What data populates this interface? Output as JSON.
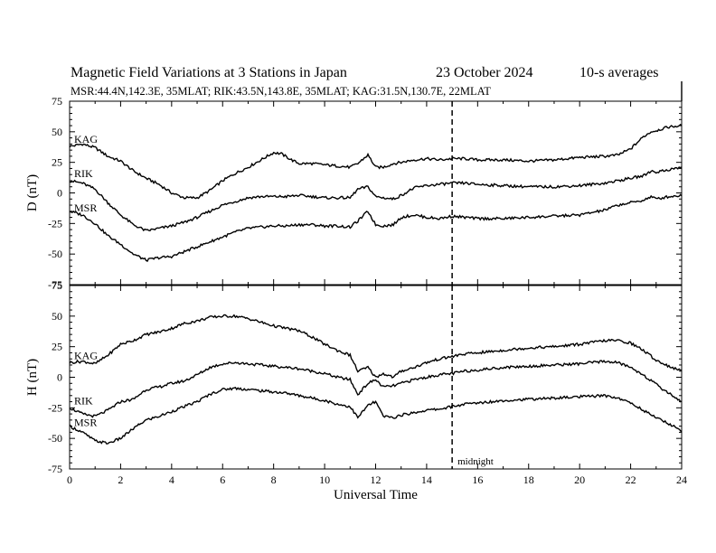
{
  "header": {
    "title": "Magnetic Field Variations at 3 Stations in Japan",
    "date": "23 October 2024",
    "averaging": "10-s averages",
    "stations": "MSR:44.4N,142.3E, 35MLAT;  RIK:43.5N,143.8E, 35MLAT;  KAG:31.5N,130.7E, 22MLAT"
  },
  "chart_data": [
    {
      "panel": "D",
      "type": "line",
      "ylabel": "D (nT)",
      "ylim": [
        -75,
        75
      ],
      "yticks": [
        75,
        50,
        25,
        0,
        -25,
        -50,
        -75
      ],
      "xlim": [
        0,
        24
      ],
      "series": [
        {
          "name": "KAG",
          "x": [
            0,
            0.5,
            1,
            1.5,
            2,
            2.5,
            3,
            3.5,
            4,
            4.5,
            5,
            5.5,
            6,
            6.5,
            7,
            7.5,
            8,
            8.3,
            8.7,
            9,
            9.5,
            10,
            10.5,
            11,
            11.3,
            11.7,
            12,
            12.3,
            12.7,
            13,
            13.5,
            14,
            14.5,
            15,
            15.5,
            16,
            17,
            18,
            19,
            20,
            21,
            21.5,
            22,
            22.5,
            22.8,
            23,
            23.5,
            24
          ],
          "values": [
            38,
            40,
            37,
            30,
            26,
            18,
            12,
            7,
            0,
            -4,
            -4,
            2,
            10,
            16,
            21,
            27,
            33,
            32,
            27,
            24,
            24,
            23,
            22,
            21,
            24,
            31,
            21,
            21,
            24,
            25,
            27,
            28,
            27,
            28,
            28,
            27,
            27,
            26,
            27,
            29,
            30,
            31,
            36,
            46,
            50,
            51,
            54,
            55
          ]
        },
        {
          "name": "RIK",
          "x": [
            0,
            0.5,
            1,
            1.5,
            2,
            2.5,
            3,
            3.5,
            4,
            4.5,
            5,
            5.5,
            6,
            6.5,
            7,
            7.5,
            8,
            8.5,
            9,
            9.5,
            10,
            10.5,
            11,
            11.3,
            11.7,
            12,
            12.3,
            12.7,
            13,
            13.5,
            14,
            14.5,
            15,
            15.5,
            16,
            17,
            18,
            19,
            20,
            21,
            21.5,
            22,
            22.5,
            22.8,
            23,
            23.5,
            24
          ],
          "values": [
            10,
            8,
            3,
            -8,
            -18,
            -26,
            -31,
            -29,
            -27,
            -24,
            -20,
            -15,
            -10,
            -7,
            -4,
            -3,
            -3,
            -3,
            -2,
            -3,
            -4,
            -4,
            -4,
            3,
            5,
            -3,
            -4,
            -5,
            -2,
            4,
            6,
            7,
            8,
            8,
            7,
            6,
            5,
            5,
            6,
            8,
            10,
            12,
            14,
            18,
            17,
            19,
            21
          ]
        },
        {
          "name": "MSR",
          "x": [
            0,
            0.5,
            1,
            1.5,
            2,
            2.5,
            3,
            3.5,
            4,
            4.5,
            5,
            5.5,
            6,
            6.5,
            7,
            7.5,
            8,
            8.5,
            9,
            9.5,
            10,
            10.5,
            11,
            11.3,
            11.7,
            12,
            12.3,
            12.7,
            13,
            13.5,
            14,
            14.5,
            15,
            15.5,
            16,
            17,
            18,
            19,
            20,
            21,
            21.5,
            22,
            22.5,
            22.8,
            23,
            23.5,
            24
          ],
          "values": [
            -15,
            -18,
            -25,
            -35,
            -42,
            -50,
            -55,
            -53,
            -52,
            -48,
            -44,
            -40,
            -36,
            -32,
            -29,
            -28,
            -27,
            -27,
            -26,
            -26,
            -27,
            -27,
            -28,
            -23,
            -15,
            -26,
            -27,
            -26,
            -20,
            -18,
            -20,
            -21,
            -19,
            -20,
            -21,
            -21,
            -20,
            -19,
            -18,
            -14,
            -10,
            -8,
            -6,
            -3,
            -5,
            -3,
            -2
          ]
        }
      ]
    },
    {
      "panel": "H",
      "type": "line",
      "ylabel": "H (nT)",
      "ylim": [
        -75,
        75
      ],
      "yticks": [
        75,
        50,
        25,
        0,
        -25,
        -50,
        -75
      ],
      "xlim": [
        0,
        24
      ],
      "xlabel": "Universal Time",
      "xticks": [
        0,
        2,
        4,
        6,
        8,
        10,
        12,
        14,
        16,
        18,
        20,
        22,
        24
      ],
      "series": [
        {
          "name": "KAG",
          "x": [
            0,
            0.5,
            1,
            1.5,
            2,
            2.5,
            3,
            3.5,
            4,
            4.5,
            5,
            5.5,
            6,
            6.5,
            7,
            7.5,
            8,
            8.5,
            9,
            9.5,
            10,
            10.5,
            11,
            11.3,
            11.7,
            12,
            12.3,
            12.7,
            13,
            13.5,
            14,
            14.5,
            15,
            15.5,
            16,
            17,
            18,
            19,
            20,
            21,
            21.5,
            22,
            22.5,
            23,
            23.5,
            24
          ],
          "values": [
            12,
            13,
            11,
            18,
            27,
            30,
            35,
            37,
            40,
            44,
            46,
            49,
            50,
            50,
            48,
            45,
            42,
            40,
            38,
            33,
            27,
            22,
            18,
            5,
            8,
            0,
            3,
            0,
            5,
            8,
            12,
            15,
            17,
            19,
            20,
            22,
            24,
            25,
            27,
            30,
            30,
            28,
            22,
            14,
            9,
            5
          ]
        },
        {
          "name": "RIK",
          "x": [
            0,
            0.5,
            1,
            1.5,
            2,
            2.5,
            3,
            3.5,
            4,
            4.5,
            5,
            5.5,
            6,
            6.5,
            7,
            7.5,
            8,
            8.5,
            9,
            9.5,
            10,
            10.5,
            11,
            11.3,
            11.7,
            12,
            12.3,
            12.7,
            13,
            13.5,
            14,
            14.5,
            15,
            15.5,
            16,
            17,
            18,
            19,
            20,
            21,
            21.5,
            22,
            22.5,
            23,
            23.5,
            24
          ],
          "values": [
            -25,
            -30,
            -32,
            -27,
            -20,
            -18,
            -10,
            -8,
            -5,
            -3,
            2,
            8,
            11,
            12,
            11,
            10,
            9,
            8,
            7,
            5,
            3,
            0,
            -2,
            -14,
            -5,
            -2,
            -8,
            -7,
            -5,
            -2,
            0,
            2,
            3,
            5,
            6,
            8,
            9,
            10,
            11,
            13,
            12,
            8,
            2,
            -6,
            -13,
            -20
          ]
        },
        {
          "name": "MSR",
          "x": [
            0,
            0.5,
            1,
            1.5,
            2,
            2.5,
            3,
            3.5,
            4,
            4.5,
            5,
            5.5,
            6,
            6.5,
            7,
            7.5,
            8,
            8.5,
            9,
            9.5,
            10,
            10.5,
            11,
            11.3,
            11.7,
            12,
            12.3,
            12.7,
            13,
            13.5,
            14,
            14.5,
            15,
            15.5,
            16,
            17,
            18,
            19,
            20,
            21,
            21.5,
            22,
            22.5,
            23,
            23.5,
            24
          ],
          "values": [
            -40,
            -45,
            -52,
            -54,
            -50,
            -42,
            -35,
            -32,
            -28,
            -24,
            -20,
            -14,
            -10,
            -9,
            -10,
            -11,
            -12,
            -13,
            -15,
            -17,
            -19,
            -22,
            -24,
            -33,
            -23,
            -20,
            -32,
            -33,
            -31,
            -29,
            -27,
            -26,
            -24,
            -22,
            -21,
            -19,
            -18,
            -17,
            -16,
            -15,
            -17,
            -21,
            -27,
            -33,
            -38,
            -44
          ]
        }
      ]
    }
  ],
  "annotations": {
    "midnight_label": "midnight",
    "midnight_ut": 15
  },
  "colors": {
    "line": "#000000",
    "background": "#ffffff"
  }
}
